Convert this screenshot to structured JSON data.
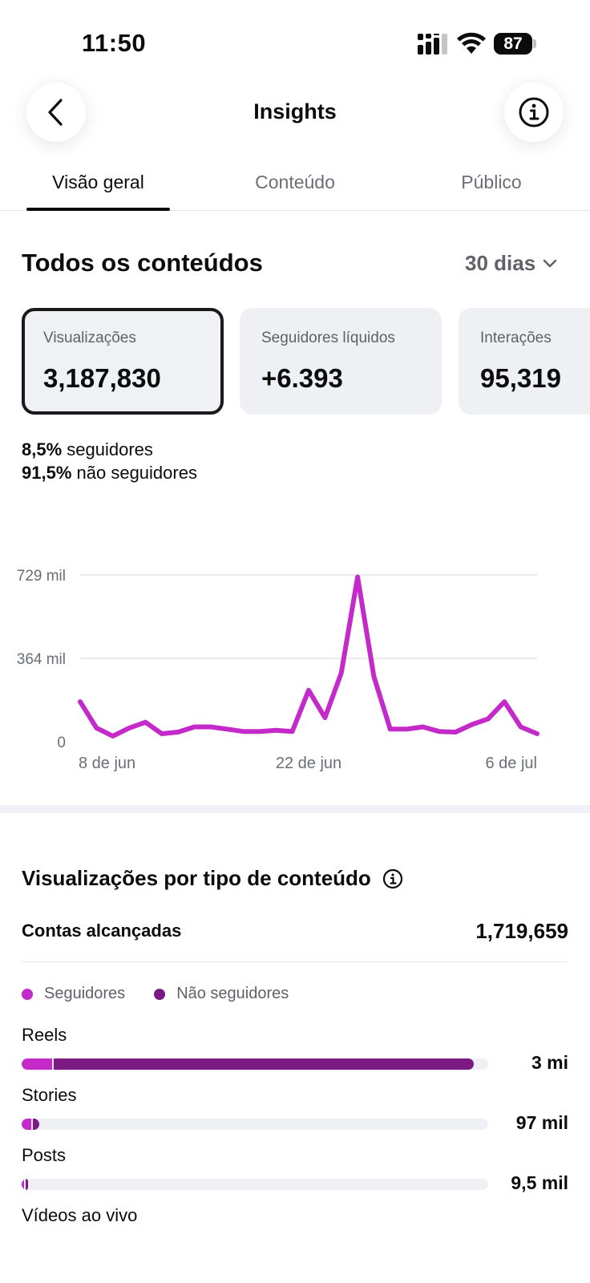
{
  "status_bar": {
    "time": "11:50",
    "battery": "87"
  },
  "header": {
    "title": "Insights"
  },
  "tabs": [
    {
      "label": "Visão geral",
      "active": true
    },
    {
      "label": "Conteúdo",
      "active": false
    },
    {
      "label": "Público",
      "active": false
    }
  ],
  "overview": {
    "title": "Todos os conteúdos",
    "period": "30 dias",
    "cards": [
      {
        "label": "Visualizações",
        "value": "3,187,830",
        "selected": true
      },
      {
        "label": "Seguidores líquidos",
        "value": "+6.393",
        "selected": false
      },
      {
        "label": "Interações",
        "value": "95,319",
        "selected": false
      }
    ],
    "split": {
      "followers_pct": "8,5%",
      "followers_label": "seguidores",
      "non_followers_pct": "91,5%",
      "non_followers_label": "não seguidores"
    }
  },
  "chart_data": {
    "type": "line",
    "ytick_labels": [
      "729 mil",
      "364 mil",
      "0"
    ],
    "ytick_values": [
      729000,
      364000,
      0
    ],
    "ylim": [
      0,
      729000
    ],
    "xtick_labels": [
      "8 de jun",
      "22 de jun",
      "6 de jul"
    ],
    "grid": true,
    "color": "#c42ac9",
    "series": [
      {
        "values": [
          175000,
          60000,
          25000,
          60000,
          85000,
          35000,
          42000,
          65000,
          65000,
          55000,
          45000,
          45000,
          50000,
          45000,
          225000,
          105000,
          300000,
          720000,
          285000,
          55000,
          55000,
          65000,
          45000,
          42000,
          75000,
          100000,
          175000,
          65000,
          35000
        ]
      }
    ]
  },
  "content_types": {
    "title": "Visualizações por tipo de conteúdo",
    "reach_label": "Contas alcançadas",
    "reach_value": "1,719,659",
    "legend": {
      "followers": "Seguidores",
      "non_followers": "Não seguidores"
    },
    "colors": {
      "followers": "#c42ac9",
      "non_followers": "#7c1a84",
      "track": "#eff0f4"
    },
    "rows": [
      {
        "label": "Reels",
        "value": "3 mi",
        "followers_fraction": 0.065,
        "non_followers_fraction": 0.9
      },
      {
        "label": "Stories",
        "value": "97 mil",
        "followers_fraction": 0.021,
        "non_followers_fraction": 0.014
      },
      {
        "label": "Posts",
        "value": "9,5 mil",
        "followers_fraction": 0.0025,
        "non_followers_fraction": 0.002
      },
      {
        "label": "Vídeos ao vivo",
        "value": "",
        "followers_fraction": 0,
        "non_followers_fraction": 0
      }
    ]
  }
}
